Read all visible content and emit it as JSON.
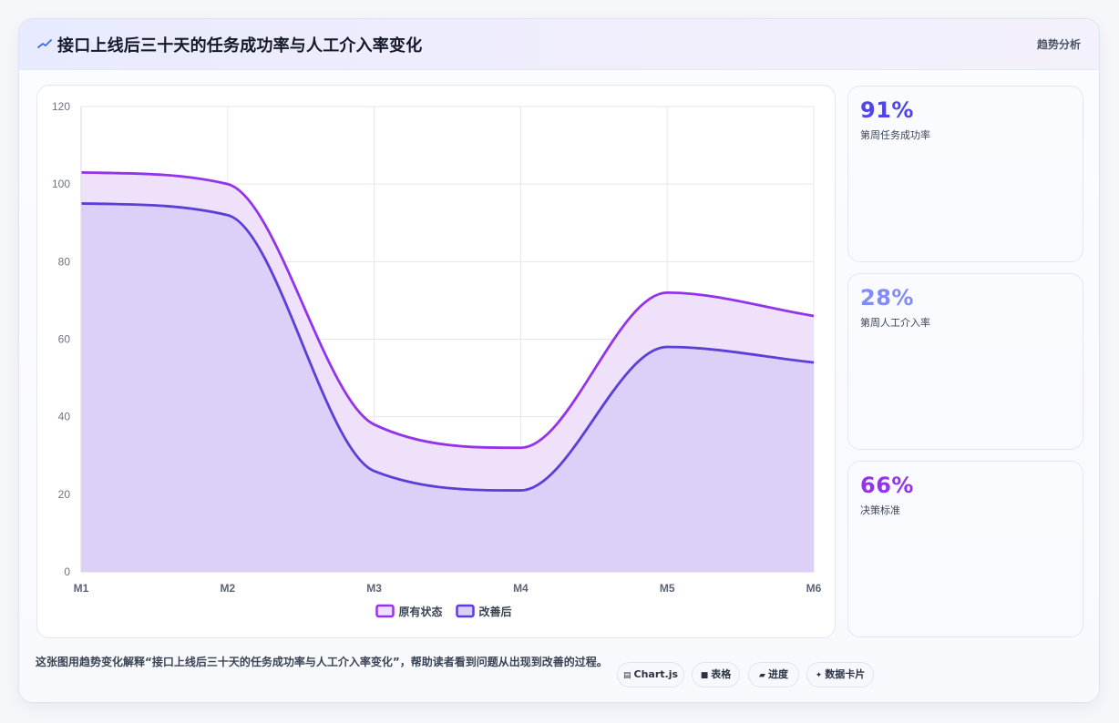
{
  "header": {
    "title": "接口上线后三十天的任务成功率与人工介入率变化",
    "tag": "趋势分析"
  },
  "stats": [
    {
      "value": "91%",
      "label": "第周任务成功率",
      "color": "#4f46e5"
    },
    {
      "value": "28%",
      "label": "第周人工介入率",
      "color": "#818cf8"
    },
    {
      "value": "66%",
      "label": "决策标准",
      "color": "#9333ea"
    }
  ],
  "caption": "这张图用趋势变化解释“接口上线后三十天的任务成功率与人工介入率变化”，帮助读者看到问题从出现到改善的过程。",
  "chips": [
    {
      "icon": "▤",
      "label": "Chart.js"
    },
    {
      "icon": "■",
      "label": "表格"
    },
    {
      "icon": "▰",
      "label": "进度"
    },
    {
      "icon": "✦",
      "label": "数据卡片"
    }
  ],
  "chart_data": {
    "type": "area",
    "title": "",
    "xlabel": "",
    "ylabel": "",
    "categories": [
      "M1",
      "M2",
      "M3",
      "M4",
      "M5",
      "M6"
    ],
    "ylim": [
      0,
      120
    ],
    "yticks": [
      0,
      20,
      40,
      60,
      80,
      100,
      120
    ],
    "grid": true,
    "legend": "bottom",
    "series": [
      {
        "name": "原有状态",
        "values": [
          103,
          100,
          38,
          32,
          72,
          66
        ],
        "color": "#9333ea",
        "fill": "#efe1fa"
      },
      {
        "name": "改善后",
        "values": [
          95,
          92,
          26,
          21,
          58,
          54
        ],
        "color": "#5b3fd6",
        "fill": "#dccff8"
      }
    ]
  }
}
